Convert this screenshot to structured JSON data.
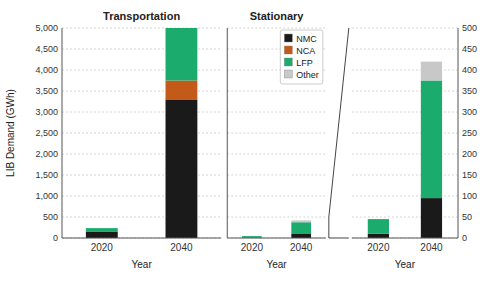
{
  "chart_data": [
    {
      "type": "bar",
      "stacked": true,
      "title": "Transportation",
      "xlabel": "Year",
      "ylabel": "LIB Demand (GWh)",
      "categories": [
        "2020",
        "2040"
      ],
      "series": [
        {
          "name": "NMC",
          "color": "#1a1a1a",
          "values": [
            155,
            3300
          ]
        },
        {
          "name": "NCA",
          "color": "#c45a1a",
          "values": [
            0,
            450
          ]
        },
        {
          "name": "LFP",
          "color": "#1aab6d",
          "values": [
            80,
            1250
          ]
        },
        {
          "name": "Other",
          "color": "#c8c8c8",
          "values": [
            0,
            0
          ]
        }
      ],
      "ylim": [
        0,
        5000
      ],
      "yticks": [
        0,
        500,
        {
          "value": 1000,
          "label": "1,000"
        },
        {
          "value": 1500,
          "label": "1,500"
        },
        {
          "value": 2000,
          "label": "2,000"
        },
        {
          "value": 2500,
          "label": "2,500"
        },
        {
          "value": 3000,
          "label": "3,000"
        },
        {
          "value": 3500,
          "label": "3,500"
        },
        {
          "value": 4000,
          "label": "4,000"
        },
        {
          "value": 4500,
          "label": "4,500"
        },
        {
          "value": 5000,
          "label": "5,000"
        }
      ],
      "grid": true
    },
    {
      "type": "bar",
      "stacked": true,
      "title": "Stationary",
      "xlabel": "Year",
      "categories": [
        "2020",
        "2040"
      ],
      "series": [
        {
          "name": "NMC",
          "color": "#1a1a1a",
          "values": [
            10,
            95
          ]
        },
        {
          "name": "NCA",
          "color": "#c45a1a",
          "values": [
            0,
            0
          ]
        },
        {
          "name": "LFP",
          "color": "#1aab6d",
          "values": [
            35,
            280
          ]
        },
        {
          "name": "Other",
          "color": "#c8c8c8",
          "values": [
            0,
            45
          ]
        }
      ],
      "ylim": [
        0,
        5000
      ],
      "yticks": [
        0,
        500,
        1000,
        1500,
        2000,
        2500,
        3000,
        3500,
        4000,
        4500,
        5000
      ],
      "tick_labels": "x",
      "legend": "upper right",
      "grid": true
    },
    {
      "type": "bar",
      "stacked": true,
      "xlabel": "Year",
      "categories": [
        "2020",
        "2040"
      ],
      "series": [
        {
          "name": "NMC",
          "color": "#1a1a1a",
          "values": [
            10,
            95
          ]
        },
        {
          "name": "NCA",
          "color": "#c45a1a",
          "values": [
            0,
            0
          ]
        },
        {
          "name": "LFP",
          "color": "#1aab6d",
          "values": [
            35,
            280
          ]
        },
        {
          "name": "Other",
          "color": "#c8c8c8",
          "values": [
            0,
            45
          ]
        }
      ],
      "ylim": [
        0,
        500
      ],
      "yticks": [
        0,
        50,
        100,
        150,
        200,
        250,
        300,
        350,
        400,
        450,
        500
      ],
      "grid": true
    }
  ]
}
